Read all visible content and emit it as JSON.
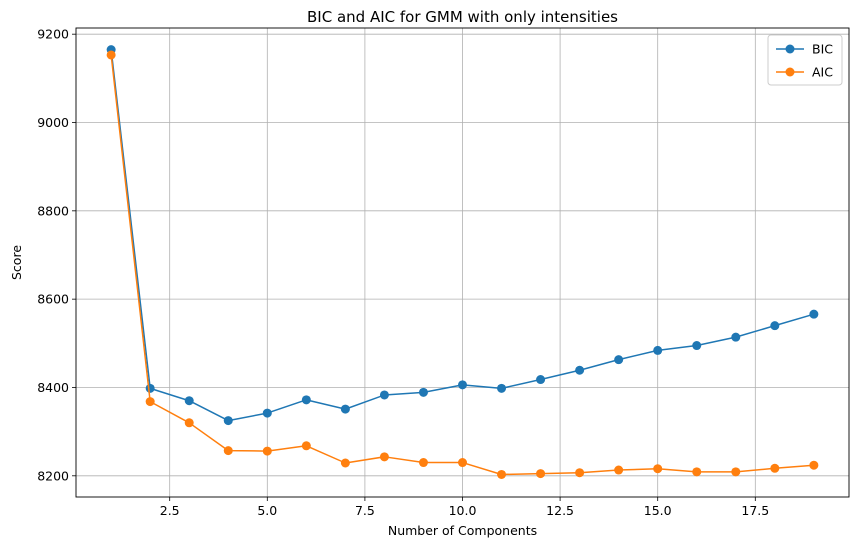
{
  "chart_data": {
    "type": "line",
    "title": "BIC and AIC for GMM with only intensities",
    "xlabel": "Number of Components",
    "ylabel": "Score",
    "xlim": [
      0.1,
      19.9
    ],
    "ylim": [
      8152,
      9214
    ],
    "xticks": [
      2.5,
      5.0,
      7.5,
      10.0,
      12.5,
      15.0,
      17.5
    ],
    "xtick_labels": [
      "2.5",
      "5.0",
      "7.5",
      "10.0",
      "12.5",
      "15.0",
      "17.5"
    ],
    "yticks": [
      8200,
      8400,
      8600,
      8800,
      9000,
      9200
    ],
    "ytick_labels": [
      "8200",
      "8400",
      "8600",
      "8800",
      "9000",
      "9200"
    ],
    "grid": true,
    "legend_position": "top-right",
    "x": [
      1,
      2,
      3,
      4,
      5,
      6,
      7,
      8,
      9,
      10,
      11,
      12,
      13,
      14,
      15,
      16,
      17,
      18,
      19
    ],
    "series": [
      {
        "name": "BIC",
        "color": "#1f77b4",
        "values": [
          9165,
          8398,
          8370,
          8325,
          8342,
          8372,
          8351,
          8383,
          8389,
          8406,
          8398,
          8418,
          8439,
          8463,
          8484,
          8495,
          8514,
          8540,
          8566
        ]
      },
      {
        "name": "AIC",
        "color": "#ff7f0e",
        "values": [
          9153,
          8368,
          8320,
          8257,
          8256,
          8268,
          8229,
          8243,
          8230,
          8230,
          8203,
          8205,
          8207,
          8213,
          8216,
          8209,
          8209,
          8217,
          8224
        ]
      }
    ]
  }
}
